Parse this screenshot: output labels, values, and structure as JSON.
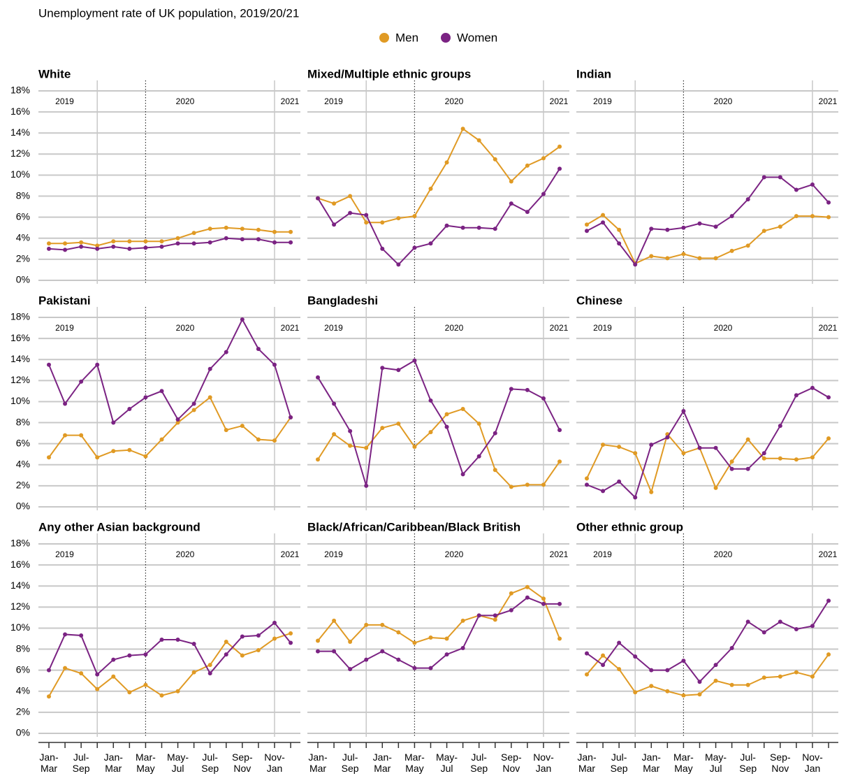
{
  "chart_data": {
    "type": "line",
    "title": "Unemployment rate of UK population, 2019/20/21",
    "categories": [
      "Jan-Mar",
      null,
      "Jul-Sep",
      null,
      "Jan-Mar",
      null,
      "Mar-May",
      null,
      "May-Jul",
      null,
      "Jul-Sep",
      null,
      "Sep-Nov",
      null,
      "Nov-Jan",
      null
    ],
    "year_labels": [
      "2019",
      "2020",
      "2021"
    ],
    "ylim": [
      0,
      18
    ],
    "yticks": [
      {
        "value": 0,
        "label": "0%"
      },
      {
        "value": 2,
        "label": "2%"
      },
      {
        "value": 4,
        "label": "4%"
      },
      {
        "value": 6,
        "label": "6%"
      },
      {
        "value": 8,
        "label": "8%"
      },
      {
        "value": 10,
        "label": "10%"
      },
      {
        "value": 12,
        "label": "12%"
      },
      {
        "value": 14,
        "label": "14%"
      },
      {
        "value": 16,
        "label": "16%"
      },
      {
        "value": 18,
        "label": "18%"
      }
    ],
    "grid": true,
    "series": [
      {
        "name": "Men",
        "color": "#e09a24"
      },
      {
        "name": "Women",
        "color": "#7b2383"
      }
    ],
    "panels": [
      {
        "title": "White",
        "values": [
          [
            3.5,
            3.5,
            3.6,
            3.3,
            3.7,
            3.7,
            3.7,
            3.7,
            4.0,
            4.5,
            4.9,
            5.0,
            4.9,
            4.8,
            4.6,
            4.6
          ],
          [
            3.0,
            2.9,
            3.2,
            3.0,
            3.2,
            3.0,
            3.1,
            3.2,
            3.5,
            3.5,
            3.6,
            4.0,
            3.9,
            3.9,
            3.6,
            3.6
          ]
        ]
      },
      {
        "title": "Mixed/Multiple ethnic groups",
        "values": [
          [
            7.8,
            7.3,
            8.0,
            5.5,
            5.5,
            5.9,
            6.1,
            8.7,
            11.2,
            14.4,
            13.3,
            11.5,
            9.4,
            10.9,
            11.6,
            12.7
          ],
          [
            7.8,
            5.3,
            6.4,
            6.2,
            3.0,
            1.5,
            3.1,
            3.5,
            5.2,
            5.0,
            5.0,
            4.9,
            7.3,
            6.5,
            8.2,
            10.6
          ]
        ]
      },
      {
        "title": "Indian",
        "values": [
          [
            5.3,
            6.2,
            4.8,
            1.6,
            2.3,
            2.1,
            2.5,
            2.1,
            2.1,
            2.8,
            3.3,
            4.7,
            5.1,
            6.1,
            6.1,
            6.0
          ],
          [
            4.7,
            5.5,
            3.5,
            1.5,
            4.9,
            4.8,
            5.0,
            5.4,
            5.1,
            6.1,
            7.7,
            9.8,
            9.8,
            8.6,
            9.1,
            7.4
          ]
        ]
      },
      {
        "title": "Pakistani",
        "values": [
          [
            4.7,
            6.8,
            6.8,
            4.7,
            5.3,
            5.4,
            4.8,
            6.4,
            8.0,
            9.2,
            10.4,
            7.3,
            7.7,
            6.4,
            6.3,
            8.5
          ],
          [
            13.5,
            9.8,
            11.9,
            13.5,
            8.0,
            9.3,
            10.4,
            11.0,
            8.3,
            9.8,
            13.1,
            14.7,
            17.8,
            15.0,
            13.5,
            8.5
          ]
        ]
      },
      {
        "title": "Bangladeshi",
        "values": [
          [
            4.5,
            6.9,
            5.8,
            5.6,
            7.5,
            7.9,
            5.7,
            7.1,
            8.8,
            9.3,
            7.9,
            3.5,
            1.9,
            2.1,
            2.1,
            4.3
          ],
          [
            12.3,
            9.8,
            7.2,
            2.0,
            13.2,
            13.0,
            13.9,
            10.1,
            7.6,
            3.1,
            4.8,
            7.0,
            11.2,
            11.1,
            10.3,
            7.3
          ]
        ]
      },
      {
        "title": "Chinese",
        "values": [
          [
            2.7,
            5.9,
            5.7,
            5.1,
            1.4,
            6.9,
            5.1,
            5.6,
            1.8,
            4.3,
            6.4,
            4.6,
            4.6,
            4.5,
            4.7,
            6.5
          ],
          [
            2.1,
            1.5,
            2.4,
            0.9,
            5.9,
            6.6,
            9.1,
            5.6,
            5.6,
            3.6,
            3.6,
            5.1,
            7.7,
            10.6,
            11.3,
            10.4
          ]
        ]
      },
      {
        "title": "Any other Asian background",
        "values": [
          [
            3.5,
            6.2,
            5.7,
            4.2,
            5.4,
            3.9,
            4.6,
            3.6,
            4.0,
            5.8,
            6.5,
            8.7,
            7.4,
            7.9,
            9.0,
            9.5
          ],
          [
            6.0,
            9.4,
            9.3,
            5.6,
            7.0,
            7.4,
            7.5,
            8.9,
            8.9,
            8.5,
            5.7,
            7.5,
            9.2,
            9.3,
            10.5,
            8.6
          ]
        ]
      },
      {
        "title": "Black/African/Caribbean/Black British",
        "values": [
          [
            8.8,
            10.7,
            8.7,
            10.3,
            10.3,
            9.6,
            8.6,
            9.1,
            9.0,
            10.7,
            11.2,
            10.8,
            13.3,
            13.9,
            12.8,
            9.0
          ],
          [
            7.8,
            7.8,
            6.1,
            7.0,
            7.8,
            7.0,
            6.2,
            6.2,
            7.5,
            8.1,
            11.2,
            11.2,
            11.7,
            12.9,
            12.3,
            12.3
          ]
        ]
      },
      {
        "title": "Other ethnic group",
        "values": [
          [
            5.6,
            7.4,
            6.1,
            3.9,
            4.5,
            4.0,
            3.6,
            3.7,
            5.0,
            4.6,
            4.6,
            5.3,
            5.4,
            5.8,
            5.4,
            7.5
          ],
          [
            7.6,
            6.5,
            8.6,
            7.3,
            6.0,
            6.0,
            6.9,
            4.9,
            6.5,
            8.1,
            10.6,
            9.6,
            10.6,
            9.9,
            10.2,
            12.6
          ]
        ]
      }
    ]
  }
}
